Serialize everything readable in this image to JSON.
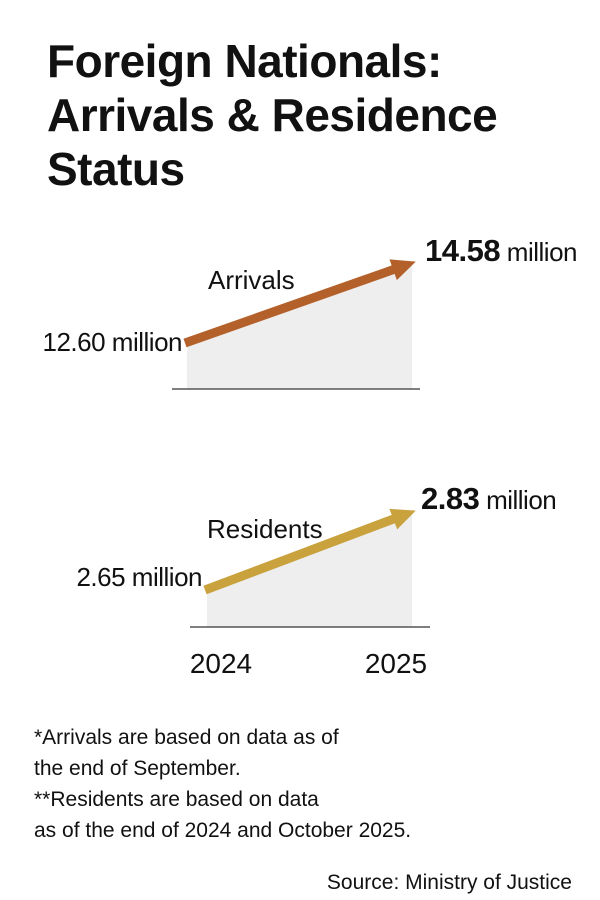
{
  "title_lines": [
    "Foreign Nationals:",
    "Arrivals & Residence",
    "Status"
  ],
  "chart_data": {
    "type": "line",
    "x": [
      "2024",
      "2025"
    ],
    "series": [
      {
        "name": "Arrivals",
        "values": [
          12.6,
          14.58
        ],
        "labels": [
          {
            "num": "12.60",
            "unit": " million"
          },
          {
            "num": "14.58",
            "unit": " million"
          }
        ],
        "color": "#b4602a"
      },
      {
        "name": "Residents",
        "values": [
          2.65,
          2.83
        ],
        "labels": [
          {
            "num": "2.65",
            "unit": " million"
          },
          {
            "num": "2.83",
            "unit": " million"
          }
        ],
        "color": "#c9a23e"
      }
    ]
  },
  "notes": [
    "*Arrivals are based on data as of",
    "the end of September.",
    "**Residents are based on data",
    "as of the end of 2024 and October 2025."
  ],
  "source": "Source: Ministry of Justice",
  "colors": {
    "area_fill": "#eeeeee",
    "baseline": "#555555",
    "text": "#111111"
  }
}
